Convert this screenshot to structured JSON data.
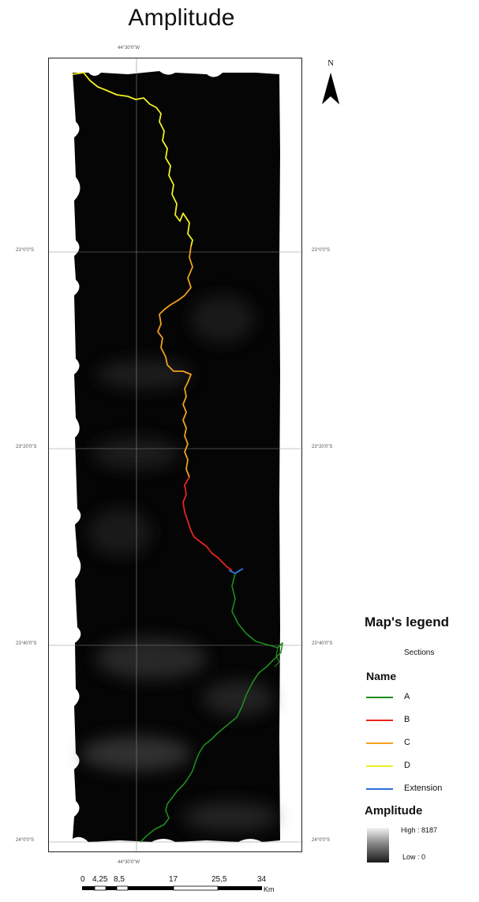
{
  "title": "Amplitude",
  "north_arrow": {
    "label": "N"
  },
  "graticule": {
    "top_label": "44°30'0\"W",
    "bottom_label": "44°30'0\"W",
    "left_labels": [
      "23°0'0\"S",
      "23°20'0\"S",
      "23°40'0\"S",
      "24°0'0\"S"
    ],
    "right_labels": [
      "23°0'0\"S",
      "23°20'0\"S",
      "23°40'0\"S",
      "24°0'0\"S"
    ]
  },
  "scale_bar": {
    "labels": [
      "0",
      "4,25",
      "8,5",
      "17",
      "25,5",
      "34"
    ],
    "unit": "Km"
  },
  "legend": {
    "title": "Map's legend",
    "subtitle": "Sections",
    "name_header": "Name",
    "items": [
      {
        "label": "A",
        "color": "#1e8c1e"
      },
      {
        "label": "B",
        "color": "#e8241c"
      },
      {
        "label": "C",
        "color": "#f0a020"
      },
      {
        "label": "D",
        "color": "#f0f020"
      },
      {
        "label": "Extension",
        "color": "#2a6fd6"
      }
    ],
    "amplitude_title": "Amplitude",
    "high_label": "High : 8187",
    "low_label": "Low : 0"
  }
}
